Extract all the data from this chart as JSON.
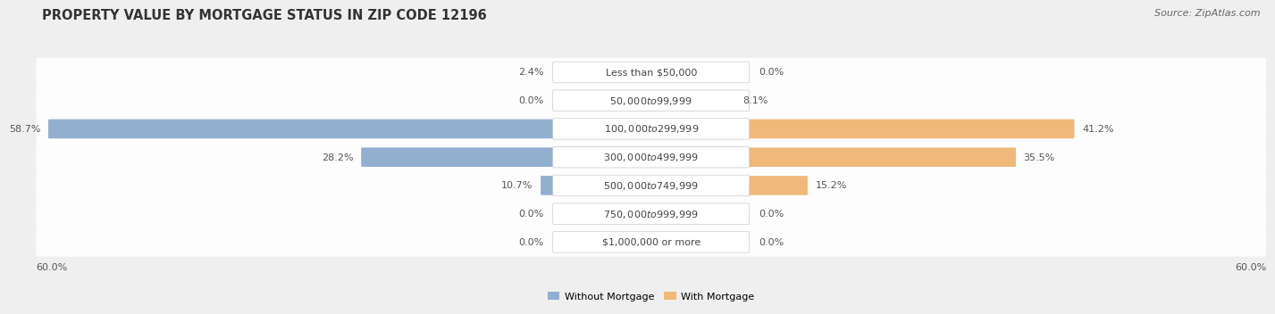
{
  "title": "PROPERTY VALUE BY MORTGAGE STATUS IN ZIP CODE 12196",
  "source": "Source: ZipAtlas.com",
  "categories": [
    "Less than $50,000",
    "$50,000 to $99,999",
    "$100,000 to $299,999",
    "$300,000 to $499,999",
    "$500,000 to $749,999",
    "$750,000 to $999,999",
    "$1,000,000 or more"
  ],
  "without_mortgage": [
    2.4,
    0.0,
    58.7,
    28.2,
    10.7,
    0.0,
    0.0
  ],
  "with_mortgage": [
    0.0,
    8.1,
    41.2,
    35.5,
    15.2,
    0.0,
    0.0
  ],
  "axis_limit": 60.0,
  "color_without": "#92afd0",
  "color_with": "#f0b97a",
  "bg_color": "#efefef",
  "title_fontsize": 10.5,
  "source_fontsize": 8,
  "label_fontsize": 8,
  "tick_fontsize": 8,
  "legend_fontsize": 8
}
